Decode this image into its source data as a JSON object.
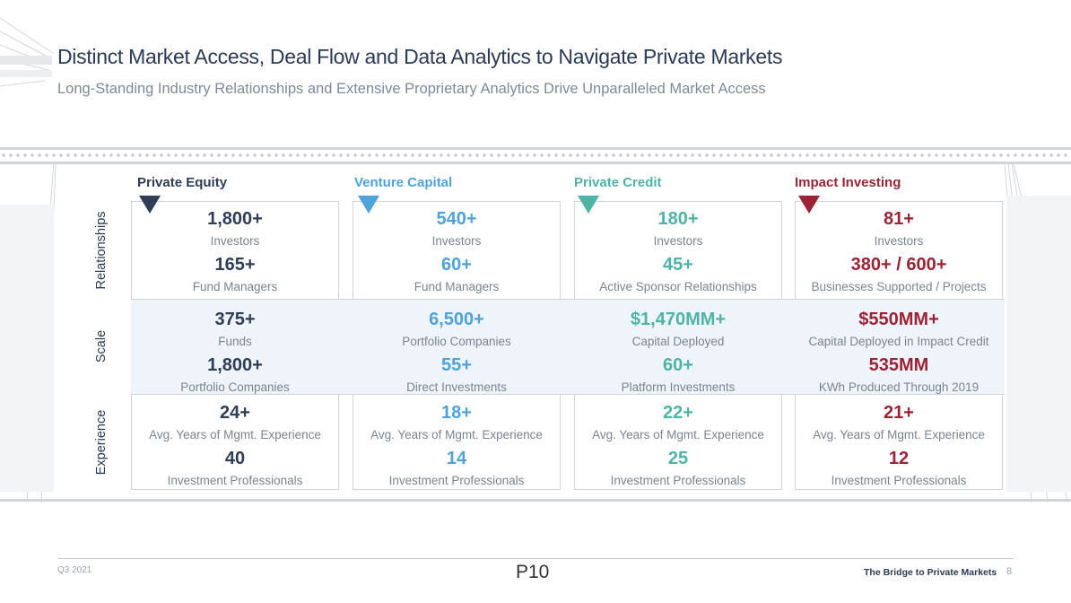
{
  "header": {
    "title": "Distinct Market Access, Deal Flow and Data Analytics to Navigate Private Markets",
    "subtitle": "Long-Standing Industry Relationships and Extensive Proprietary Analytics Drive Unparalleled Market Access"
  },
  "rows": {
    "relationships": "Relationships",
    "scale": "Scale",
    "experience": "Experience"
  },
  "columns": [
    {
      "name": "Private Equity",
      "color": "#2f3d56",
      "relationships": [
        {
          "value": "1,800+",
          "label": "Investors"
        },
        {
          "value": "165+",
          "label": "Fund Managers"
        }
      ],
      "scale": [
        {
          "value": "375+",
          "label": "Funds"
        },
        {
          "value": "1,800+",
          "label": "Portfolio Companies"
        }
      ],
      "experience": [
        {
          "value": "24+",
          "label": "Avg. Years of Mgmt. Experience"
        },
        {
          "value": "40",
          "label": "Investment Professionals"
        }
      ]
    },
    {
      "name": "Venture Capital",
      "color": "#4fa3d8",
      "relationships": [
        {
          "value": "540+",
          "label": "Investors"
        },
        {
          "value": "60+",
          "label": "Fund Managers"
        }
      ],
      "scale": [
        {
          "value": "6,500+",
          "label": "Portfolio Companies"
        },
        {
          "value": "55+",
          "label": "Direct Investments"
        }
      ],
      "experience": [
        {
          "value": "18+",
          "label": "Avg. Years of Mgmt. Experience"
        },
        {
          "value": "14",
          "label": "Investment Professionals"
        }
      ]
    },
    {
      "name": "Private Credit",
      "color": "#4fb3a6",
      "relationships": [
        {
          "value": "180+",
          "label": "Investors"
        },
        {
          "value": "45+",
          "label": "Active Sponsor Relationships"
        }
      ],
      "scale": [
        {
          "value": "$1,470MM+",
          "label": "Capital Deployed"
        },
        {
          "value": "60+",
          "label": "Platform Investments"
        }
      ],
      "experience": [
        {
          "value": "22+",
          "label": "Avg. Years of Mgmt. Experience"
        },
        {
          "value": "25",
          "label": "Investment Professionals"
        }
      ]
    },
    {
      "name": "Impact Investing",
      "color": "#9b2335",
      "relationships": [
        {
          "value": "81+",
          "label": "Investors"
        },
        {
          "value": "380+ / 600+",
          "label": "Businesses Supported / Projects"
        }
      ],
      "scale": [
        {
          "value": "$550MM+",
          "label": "Capital Deployed in Impact Credit"
        },
        {
          "value": "535MM",
          "label": "KWh Produced Through 2019"
        }
      ],
      "experience": [
        {
          "value": "21+",
          "label": "Avg. Years of Mgmt. Experience"
        },
        {
          "value": "12",
          "label": "Investment Professionals"
        }
      ]
    }
  ],
  "footer": {
    "date": "Q3 2021",
    "page_code": "P10",
    "brand": "The Bridge to Private Markets",
    "page_number": "8"
  }
}
